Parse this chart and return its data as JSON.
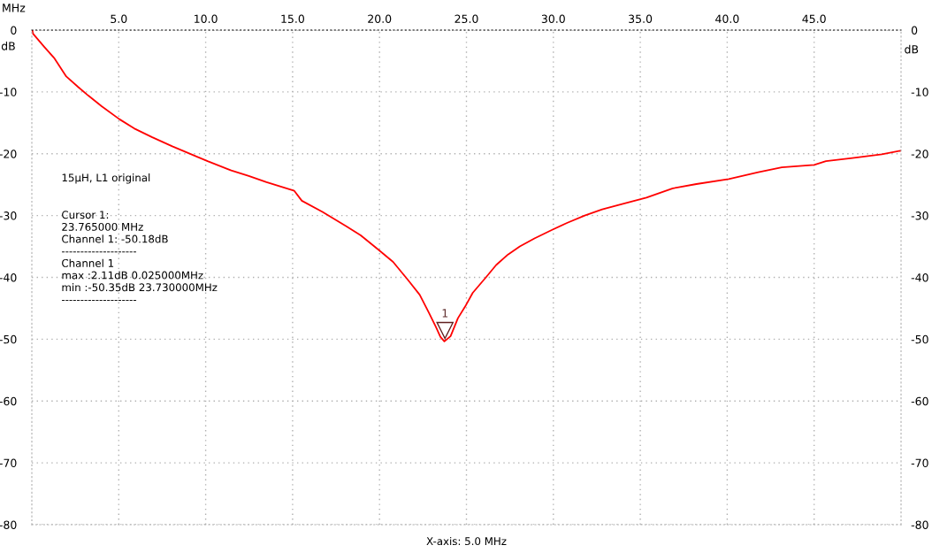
{
  "chart_data": {
    "type": "line",
    "xlabel": "MHz",
    "ylabel": "dB",
    "y2label": "dB",
    "x": [
      0.025,
      0.07,
      0.71,
      1.31,
      1.98,
      2.66,
      3.25,
      4.01,
      5.03,
      5.88,
      6.9,
      8.08,
      9.44,
      10.11,
      11.47,
      12.48,
      13.5,
      15.1,
      15.53,
      16.72,
      18.07,
      18.92,
      19.97,
      20.78,
      21.63,
      22.31,
      22.82,
      23.24,
      23.5,
      23.73,
      24.09,
      24.51,
      24.93,
      25.36,
      26.12,
      26.71,
      27.39,
      28.07,
      28.91,
      29.93,
      30.78,
      31.8,
      32.81,
      34.0,
      35.35,
      36.87,
      38.23,
      40.09,
      41.79,
      43.14,
      45.0,
      45.68,
      47.2,
      48.9,
      50.0
    ],
    "series": [
      {
        "color": "#ff0000",
        "values": [
          0,
          -0.6,
          -2.7,
          -4.6,
          -7.5,
          -9.2,
          -10.6,
          -12.3,
          -14.4,
          -15.9,
          -17.3,
          -18.8,
          -20.4,
          -21.2,
          -22.7,
          -23.6,
          -24.6,
          -26.0,
          -27.6,
          -29.4,
          -31.7,
          -33.2,
          -35.6,
          -37.5,
          -40.4,
          -42.8,
          -45.6,
          -48.0,
          -49.6,
          -50.35,
          -49.5,
          -46.6,
          -44.7,
          -42.5,
          -40.0,
          -38.0,
          -36.3,
          -35.0,
          -33.7,
          -32.3,
          -31.2,
          -30.0,
          -29.0,
          -28.1,
          -27.1,
          -25.6,
          -24.9,
          -24.1,
          -23.0,
          -22.2,
          -21.8,
          -21.2,
          -20.7,
          -20.1,
          -19.5
        ]
      }
    ],
    "xlim": [
      0,
      50
    ],
    "xticks": [
      {
        "value": 5,
        "label": "5.0"
      },
      {
        "value": 10,
        "label": "10.0"
      },
      {
        "value": 15,
        "label": "15.0"
      },
      {
        "value": 20,
        "label": "20.0"
      },
      {
        "value": 25,
        "label": "25.0"
      },
      {
        "value": 30,
        "label": "30.0"
      },
      {
        "value": 35,
        "label": "35.0"
      },
      {
        "value": 40,
        "label": "40.0"
      },
      {
        "value": 45,
        "label": "45.0"
      }
    ],
    "ylim": [
      -80,
      0
    ],
    "yticks": [
      0,
      -10,
      -20,
      -30,
      -40,
      -50,
      -60,
      -70,
      -80
    ],
    "y2lim": [
      -80,
      0
    ],
    "y2ticks": [
      0,
      -10,
      -20,
      -30,
      -40,
      -50,
      -60,
      -70,
      -80
    ],
    "grid": true,
    "marker": "none",
    "line_style": "solid",
    "annotations": [
      "15μH, L1 original",
      "Cursor 1:\n23.765000 MHz\nChannel 1: -50.18dB\n--------------------\nChannel 1\nmax :2.11dB 0.025000MHz\nmin :-50.35dB 23.730000MHz\n--------------------",
      "X-axis: 5.0 MHz",
      {
        "text": "1",
        "x": 23.765,
        "y": -50.18
      }
    ]
  }
}
